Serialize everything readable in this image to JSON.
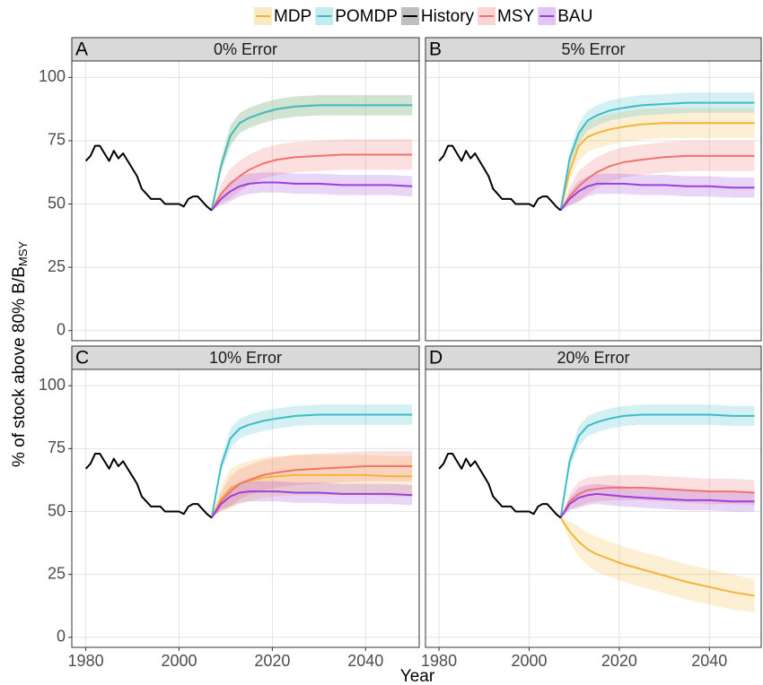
{
  "legend": [
    {
      "name": "MDP",
      "color": "#f2b53a"
    },
    {
      "name": "POMDP",
      "color": "#3cbcc7"
    },
    {
      "name": "History",
      "color": "#000000"
    },
    {
      "name": "MSY",
      "color": "#f0736e"
    },
    {
      "name": "BAU",
      "color": "#9b40d9"
    }
  ],
  "x_label": "Year",
  "y_label": "% of stock above 80% B/B",
  "y_label_sub": "MSY",
  "chart_data": [
    {
      "type": "line",
      "panel": "A",
      "title": "0% Error",
      "xlim": [
        1977,
        2051.5
      ],
      "ylim": [
        -4,
        106.5
      ],
      "xticks": [
        1980,
        2000,
        2020,
        2040
      ],
      "yticks": [
        0,
        25,
        50,
        75,
        100
      ],
      "grid": true,
      "x": [
        2007,
        2009,
        2011,
        2013,
        2015,
        2018,
        2021,
        2025,
        2030,
        2035,
        2040,
        2045,
        2050
      ],
      "series": [
        {
          "values": [
            47.5,
            65,
            77,
            82,
            84,
            86,
            87.5,
            88.5,
            89,
            89,
            89,
            89,
            89
          ],
          "lower": [
            47.5,
            62.5,
            73,
            78,
            80,
            82,
            83.5,
            84.5,
            85,
            85,
            85,
            85,
            85
          ],
          "upper": [
            47.5,
            67.5,
            81,
            86,
            88,
            90,
            91.5,
            92.5,
            93,
            93,
            93,
            93,
            93
          ]
        },
        {
          "values": [
            47.5,
            65,
            77,
            82,
            84,
            86,
            87.5,
            88.5,
            89,
            89,
            89,
            89,
            89
          ],
          "lower": [
            47.5,
            62.5,
            73,
            78,
            80,
            82,
            83.5,
            84.5,
            85,
            85,
            85,
            85,
            85
          ],
          "upper": [
            47.5,
            67.5,
            81,
            86,
            88,
            90,
            91.5,
            92.5,
            93,
            93,
            93,
            93,
            93
          ]
        },
        {
          "x": [
            1980,
            1981,
            1982,
            1983,
            1984,
            1985,
            1986,
            1987,
            1988,
            1989,
            1990,
            1991,
            1992,
            1993,
            1994,
            1995,
            1996,
            1997,
            1998,
            1999,
            2000,
            2001,
            2002,
            2003,
            2004,
            2005,
            2006,
            2007
          ],
          "values": [
            67,
            69,
            73,
            73,
            70,
            67,
            71,
            68,
            70,
            67,
            64,
            61,
            56,
            54,
            52,
            52,
            52,
            50,
            50,
            50,
            50,
            49,
            52,
            53,
            53,
            51,
            49,
            47.5
          ]
        },
        {
          "values": [
            47.5,
            54,
            58,
            61,
            63.5,
            66,
            67.5,
            68.5,
            69,
            69.5,
            69.5,
            69.5,
            69.5
          ],
          "lower": [
            47.5,
            50.5,
            52,
            55,
            57.5,
            60,
            61.5,
            62.5,
            63,
            63.5,
            63.5,
            63.5,
            63.5
          ],
          "upper": [
            47.5,
            57.5,
            64,
            67,
            69.5,
            72,
            73.5,
            74.5,
            75,
            75.5,
            75.5,
            75.5,
            75.5
          ]
        },
        {
          "values": [
            47.5,
            52,
            55,
            57,
            58,
            58.5,
            58.5,
            58,
            58,
            57.5,
            57.5,
            57.5,
            57
          ],
          "lower": [
            47.5,
            49.5,
            51,
            53,
            54,
            54.5,
            54.5,
            54,
            54,
            53.5,
            53.5,
            53.5,
            53
          ],
          "upper": [
            47.5,
            54.5,
            59,
            61,
            62,
            62.5,
            62.5,
            62,
            62,
            61.5,
            61.5,
            61.5,
            61
          ]
        }
      ]
    },
    {
      "type": "line",
      "panel": "B",
      "title": "5% Error",
      "xlim": [
        1977,
        2051.5
      ],
      "ylim": [
        -4,
        106.5
      ],
      "xticks": [
        1980,
        2000,
        2020,
        2040
      ],
      "yticks": [
        0,
        25,
        50,
        75,
        100
      ],
      "grid": true,
      "x": [
        2007,
        2009,
        2011,
        2013,
        2015,
        2018,
        2021,
        2025,
        2030,
        2035,
        2040,
        2045,
        2050
      ],
      "series": [
        {
          "values": [
            47.5,
            63,
            73,
            76.5,
            78,
            79.5,
            80.5,
            81.5,
            82,
            82,
            82,
            82,
            82
          ],
          "lower": [
            47.5,
            59.5,
            67,
            70.5,
            72,
            73.5,
            74.5,
            75.5,
            76,
            76,
            76,
            76,
            76
          ],
          "upper": [
            47.5,
            66.5,
            79,
            82.5,
            84,
            85.5,
            86.5,
            87.5,
            88,
            88,
            88,
            88,
            88
          ]
        },
        {
          "values": [
            47.5,
            68,
            78,
            83,
            85,
            87,
            88,
            89,
            89.5,
            90,
            90,
            90,
            90
          ],
          "lower": [
            47.5,
            65.5,
            74,
            79,
            81,
            83,
            84,
            85,
            85.5,
            86,
            86,
            86,
            86
          ],
          "upper": [
            47.5,
            70.5,
            82,
            87,
            89,
            91,
            92,
            93,
            93.5,
            94,
            94,
            94,
            94
          ]
        },
        {
          "x": [
            1980,
            1981,
            1982,
            1983,
            1984,
            1985,
            1986,
            1987,
            1988,
            1989,
            1990,
            1991,
            1992,
            1993,
            1994,
            1995,
            1996,
            1997,
            1998,
            1999,
            2000,
            2001,
            2002,
            2003,
            2004,
            2005,
            2006,
            2007
          ],
          "values": [
            67,
            69,
            73,
            73,
            70,
            67,
            71,
            68,
            70,
            67,
            64,
            61,
            56,
            54,
            52,
            52,
            52,
            50,
            50,
            50,
            50,
            49,
            52,
            53,
            53,
            51,
            49,
            47.5
          ]
        },
        {
          "values": [
            47.5,
            53,
            57,
            60,
            62.5,
            65,
            66.5,
            67.5,
            68.5,
            69,
            69,
            69,
            69
          ],
          "lower": [
            47.5,
            49.5,
            51,
            54,
            56.5,
            59,
            60.5,
            61.5,
            62.5,
            63,
            63,
            63,
            63
          ],
          "upper": [
            47.5,
            56.5,
            63,
            66,
            68.5,
            71,
            72.5,
            73.5,
            74.5,
            75,
            75,
            75,
            75
          ]
        },
        {
          "values": [
            47.5,
            52,
            55,
            57,
            58,
            58,
            58,
            57.5,
            57.5,
            57,
            57,
            56.5,
            56.5
          ],
          "lower": [
            47.5,
            49.5,
            51,
            53,
            54,
            54,
            54,
            53.5,
            53.5,
            53,
            53,
            52.5,
            52.5
          ],
          "upper": [
            47.5,
            54.5,
            59,
            61,
            62,
            62,
            62,
            61.5,
            61.5,
            61,
            61,
            60.5,
            60.5
          ]
        }
      ]
    },
    {
      "type": "line",
      "panel": "C",
      "title": "10% Error",
      "xlim": [
        1977,
        2051.5
      ],
      "ylim": [
        -4,
        106.5
      ],
      "xticks": [
        1980,
        2000,
        2020,
        2040
      ],
      "yticks": [
        0,
        25,
        50,
        75,
        100
      ],
      "grid": true,
      "x": [
        2007,
        2009,
        2011,
        2013,
        2015,
        2018,
        2021,
        2025,
        2030,
        2035,
        2040,
        2045,
        2050
      ],
      "series": [
        {
          "values": [
            47.5,
            55,
            59,
            61,
            62,
            63.5,
            64,
            64.5,
            64.5,
            64.5,
            64.5,
            64,
            64
          ],
          "lower": [
            47.5,
            50,
            51,
            53,
            54,
            55.5,
            56,
            56.5,
            56.5,
            56.5,
            56.5,
            56,
            56
          ],
          "upper": [
            47.5,
            60,
            67,
            69,
            70,
            71.5,
            72,
            72.5,
            72.5,
            72.5,
            72.5,
            72,
            72
          ]
        },
        {
          "values": [
            47.5,
            68,
            79,
            83,
            84.5,
            86,
            87,
            88,
            88.5,
            88.5,
            88.5,
            88.5,
            88.5
          ],
          "lower": [
            47.5,
            65.5,
            75,
            79,
            80.5,
            82,
            83,
            84,
            84.5,
            84.5,
            84.5,
            84.5,
            84.5
          ],
          "upper": [
            47.5,
            70.5,
            83,
            87,
            88.5,
            90,
            91,
            92,
            92.5,
            92.5,
            92.5,
            92.5,
            92.5
          ]
        },
        {
          "x": [
            1980,
            1981,
            1982,
            1983,
            1984,
            1985,
            1986,
            1987,
            1988,
            1989,
            1990,
            1991,
            1992,
            1993,
            1994,
            1995,
            1996,
            1997,
            1998,
            1999,
            2000,
            2001,
            2002,
            2003,
            2004,
            2005,
            2006,
            2007
          ],
          "values": [
            67,
            69,
            73,
            73,
            70,
            67,
            71,
            68,
            70,
            67,
            64,
            61,
            56,
            54,
            52,
            52,
            52,
            50,
            50,
            50,
            50,
            49,
            52,
            53,
            53,
            51,
            49,
            47.5
          ]
        },
        {
          "values": [
            47.5,
            54,
            58,
            61,
            62.5,
            64.5,
            65.5,
            66.5,
            67,
            67.5,
            68,
            68,
            68
          ],
          "lower": [
            47.5,
            50.5,
            52,
            55,
            56.5,
            58.5,
            59.5,
            60.5,
            61,
            61.5,
            62,
            62,
            62
          ],
          "upper": [
            47.5,
            57.5,
            64,
            67,
            68.5,
            70.5,
            71.5,
            72.5,
            73,
            73.5,
            74,
            74,
            74
          ]
        },
        {
          "values": [
            47.5,
            53,
            56,
            57.5,
            58,
            58,
            58,
            57.5,
            57.5,
            57,
            57,
            57,
            56.5
          ],
          "lower": [
            47.5,
            50.5,
            52,
            53.5,
            54,
            54,
            54,
            53.5,
            53.5,
            53,
            53,
            53,
            52.5
          ],
          "upper": [
            47.5,
            55.5,
            60,
            61.5,
            62,
            62,
            62,
            61.5,
            61.5,
            61,
            61,
            61,
            60.5
          ]
        }
      ]
    },
    {
      "type": "line",
      "panel": "D",
      "title": "20% Error",
      "xlim": [
        1977,
        2051.5
      ],
      "ylim": [
        -4,
        106.5
      ],
      "xticks": [
        1980,
        2000,
        2020,
        2040
      ],
      "yticks": [
        0,
        25,
        50,
        75,
        100
      ],
      "grid": true,
      "x": [
        2007,
        2009,
        2011,
        2013,
        2015,
        2018,
        2021,
        2025,
        2030,
        2035,
        2040,
        2045,
        2050
      ],
      "series": [
        {
          "values": [
            47.5,
            42,
            38,
            35,
            33,
            31,
            29,
            27,
            24.5,
            22,
            20,
            18,
            16.5
          ],
          "lower": [
            47.5,
            38,
            32,
            28.5,
            26,
            24,
            22,
            20,
            17.5,
            15,
            13,
            11,
            10
          ],
          "upper": [
            47.5,
            46,
            44,
            41.5,
            40,
            38,
            36,
            34,
            31.5,
            29,
            27,
            25,
            23
          ]
        },
        {
          "values": [
            47.5,
            70,
            80,
            84,
            85.5,
            87,
            88,
            88.5,
            88.5,
            88.5,
            88.5,
            88,
            88
          ],
          "lower": [
            47.5,
            67.5,
            76,
            80,
            81.5,
            83,
            84,
            84.5,
            84.5,
            84.5,
            84.5,
            84,
            84
          ],
          "upper": [
            47.5,
            72.5,
            84,
            88,
            89.5,
            91,
            92,
            92.5,
            92.5,
            92.5,
            92.5,
            92,
            92
          ]
        },
        {
          "x": [
            1980,
            1981,
            1982,
            1983,
            1984,
            1985,
            1986,
            1987,
            1988,
            1989,
            1990,
            1991,
            1992,
            1993,
            1994,
            1995,
            1996,
            1997,
            1998,
            1999,
            2000,
            2001,
            2002,
            2003,
            2004,
            2005,
            2006,
            2007
          ],
          "values": [
            67,
            69,
            73,
            73,
            70,
            67,
            71,
            68,
            70,
            67,
            64,
            61,
            56,
            54,
            52,
            52,
            52,
            50,
            50,
            50,
            50,
            49,
            52,
            53,
            53,
            51,
            49,
            47.5
          ]
        },
        {
          "values": [
            47.5,
            54,
            57,
            58.5,
            59,
            59.5,
            59.5,
            59.5,
            59,
            58.5,
            58,
            58,
            57.5
          ],
          "lower": [
            47.5,
            51,
            52,
            53.5,
            54,
            54.5,
            54.5,
            54.5,
            54,
            53.5,
            53,
            53,
            52.5
          ],
          "upper": [
            47.5,
            57,
            62,
            63.5,
            64,
            64.5,
            64.5,
            64.5,
            64,
            63.5,
            63,
            63,
            62.5
          ]
        },
        {
          "values": [
            47.5,
            53,
            55.5,
            56.5,
            57,
            56.5,
            56,
            55.5,
            55,
            54.5,
            54.5,
            54,
            54
          ],
          "lower": [
            47.5,
            50.5,
            51.5,
            52.5,
            53,
            52.5,
            52,
            51.5,
            51,
            50.5,
            50.5,
            50,
            50
          ],
          "upper": [
            47.5,
            55.5,
            59.5,
            60.5,
            61,
            60.5,
            60,
            59.5,
            59,
            58.5,
            58.5,
            58,
            58
          ]
        }
      ]
    }
  ]
}
